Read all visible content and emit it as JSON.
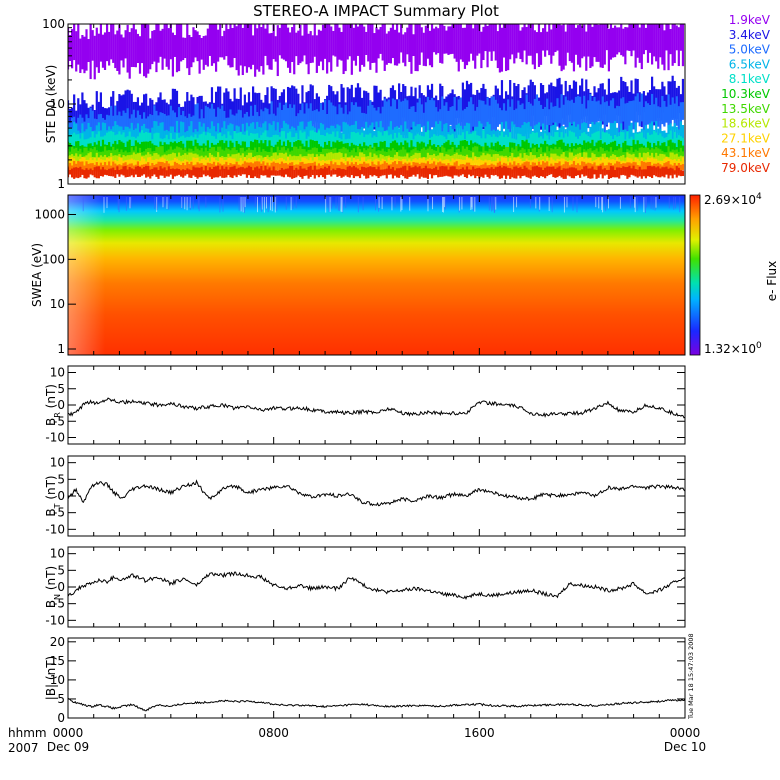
{
  "title": "STEREO-A IMPACT Summary Plot",
  "x_axis": {
    "row1_label": "hhmm",
    "row2_label": "2007",
    "ticks": [
      {
        "hhmm": "0000",
        "date": "Dec 09",
        "hours": 0
      },
      {
        "hhmm": "0800",
        "date": "",
        "hours": 8
      },
      {
        "hhmm": "1600",
        "date": "",
        "hours": 16
      },
      {
        "hhmm": "0000",
        "date": "Dec 10",
        "hours": 24
      }
    ],
    "range_hours": [
      0,
      24
    ]
  },
  "timestamp": "Tue Mar 18 15:47:03 2008",
  "colorbar": {
    "label": "e- Flux",
    "max_mantissa": "2.69×10",
    "max_exp": "4",
    "min_mantissa": "1.32×10",
    "min_exp": "0"
  },
  "colors": {
    "ste_1_9": "#9400f0",
    "ste_3_4": "#1a14e6",
    "ste_5_0": "#1e6cff",
    "ste_6_5": "#00b4e8",
    "ste_8_1": "#00e0c8",
    "ste_10_3": "#00c800",
    "ste_13_5": "#40d800",
    "ste_18_6": "#b4e800",
    "ste_27_1": "#ffd200",
    "ste_43_1": "#ff7800",
    "ste_79_0": "#e82800"
  },
  "chart_data": [
    {
      "type": "line",
      "panel": "ste",
      "ylabel": "STE D0 (keV)",
      "yscale": "log",
      "ylim": [
        1,
        100
      ],
      "yticks": [
        "1",
        "10",
        "100"
      ],
      "series": [
        {
          "name": "1.9keV",
          "level": 48,
          "spread": 0.28
        },
        {
          "name": "3.4keV",
          "level": 6.5,
          "spread": 0.25
        },
        {
          "name": "5.0keV",
          "level": 4.8,
          "spread": 0.2
        },
        {
          "name": "6.5keV",
          "level": 3.8,
          "spread": 0.15
        },
        {
          "name": "8.1keV",
          "level": 3.2,
          "spread": 0.12
        },
        {
          "name": "10.3keV",
          "level": 2.6,
          "spread": 0.1
        },
        {
          "name": "13.5keV",
          "level": 2.3,
          "spread": 0.08
        },
        {
          "name": "18.6keV",
          "level": 2.0,
          "spread": 0.07
        },
        {
          "name": "27.1keV",
          "level": 1.8,
          "spread": 0.06
        },
        {
          "name": "43.1keV",
          "level": 1.6,
          "spread": 0.06
        },
        {
          "name": "79.0keV",
          "level": 1.4,
          "spread": 0.06
        }
      ]
    },
    {
      "type": "heatmap",
      "panel": "swea",
      "ylabel": "SWEA (eV)",
      "yscale": "log",
      "ylim": [
        1,
        2000
      ],
      "yticks": [
        "1",
        "10",
        "100",
        "1000"
      ],
      "zlim": [
        1.32,
        26900
      ],
      "zlabel": "e- Flux"
    },
    {
      "type": "line",
      "panel": "br",
      "ylabel": "B_R (nT)",
      "ylim": [
        -12,
        12
      ],
      "yticks": [
        "-10",
        "-5",
        "0",
        "5",
        "10"
      ],
      "x_hours": [
        0,
        0.3,
        0.6,
        0.9,
        1.2,
        1.5,
        1.8,
        2.1,
        2.5,
        3,
        3.5,
        4,
        4.5,
        5,
        5.5,
        6,
        6.5,
        7,
        7.5,
        8,
        8.5,
        9,
        9.5,
        10,
        10.5,
        11,
        11.5,
        12,
        12.5,
        13,
        13.5,
        14,
        14.5,
        15,
        15.5,
        16,
        16.5,
        17,
        17.5,
        18,
        18.5,
        19,
        19.5,
        20,
        20.5,
        21,
        21.5,
        22,
        22.5,
        23,
        23.5,
        24
      ],
      "y": [
        -3,
        -2.5,
        0,
        1,
        0.5,
        2,
        1.5,
        0.8,
        1,
        0.5,
        0,
        0.5,
        -0.5,
        -1,
        -0.5,
        0,
        -1,
        -0.5,
        -1.5,
        -1,
        -1.2,
        -0.8,
        -1.5,
        -2,
        -2.2,
        -2.5,
        -2,
        -2.3,
        -1,
        -2.5,
        -2.8,
        -2.2,
        -2.5,
        -2.6,
        -2.4,
        1,
        0.5,
        0,
        -0.5,
        -2.5,
        -3,
        -2.8,
        -2.6,
        -2.4,
        -1,
        0.5,
        -2,
        -2.2,
        0,
        -1,
        -2.5,
        -3.5
      ]
    },
    {
      "type": "line",
      "panel": "bt",
      "ylabel": "B_T (nT)",
      "ylim": [
        -12,
        12
      ],
      "yticks": [
        "-10",
        "-5",
        "0",
        "5",
        "10"
      ],
      "x_hours": [
        0,
        0.3,
        0.6,
        0.9,
        1.2,
        1.5,
        1.8,
        2.1,
        2.5,
        3,
        3.5,
        4,
        4.5,
        5,
        5.5,
        6,
        6.5,
        7,
        7.5,
        8,
        8.5,
        9,
        9.5,
        10,
        10.5,
        11,
        11.5,
        12,
        12.5,
        13,
        13.5,
        14,
        14.5,
        15,
        15.5,
        16,
        16.5,
        17,
        17.5,
        18,
        18.5,
        19,
        19.5,
        20,
        20.5,
        21,
        21.5,
        22,
        22.5,
        23,
        23.5,
        24
      ],
      "y": [
        -1,
        2,
        -2,
        3,
        4,
        3.5,
        1,
        -1,
        2,
        3,
        2,
        1,
        3,
        4,
        -1,
        2,
        3,
        1,
        2,
        2.5,
        3,
        1,
        -0.5,
        0.5,
        0,
        0.5,
        -2,
        -2.5,
        -2,
        -1,
        -1.5,
        0,
        -0.5,
        0.5,
        0,
        2,
        1,
        0,
        -0.5,
        -1,
        0.5,
        0,
        0.5,
        1,
        0,
        2.5,
        2,
        3,
        2.5,
        3,
        2.5,
        2
      ]
    },
    {
      "type": "line",
      "panel": "bn",
      "ylabel": "B_N (nT)",
      "ylim": [
        -12,
        12
      ],
      "yticks": [
        "-10",
        "-5",
        "0",
        "5",
        "10"
      ],
      "x_hours": [
        0,
        0.3,
        0.6,
        0.9,
        1.2,
        1.5,
        1.8,
        2.1,
        2.5,
        3,
        3.5,
        4,
        4.5,
        5,
        5.5,
        6,
        6.5,
        7,
        7.5,
        8,
        8.5,
        9,
        9.5,
        10,
        10.5,
        11,
        11.5,
        12,
        12.5,
        13,
        13.5,
        14,
        14.5,
        15,
        15.5,
        16,
        16.5,
        17,
        17.5,
        18,
        18.5,
        19,
        19.5,
        20,
        20.5,
        21,
        21.5,
        22,
        22.5,
        23,
        23.5,
        24
      ],
      "y": [
        -3,
        -1,
        0.5,
        1,
        2,
        1.5,
        3,
        2,
        3.5,
        2,
        3,
        1,
        2.5,
        0.5,
        4,
        3.5,
        4,
        3.5,
        3,
        0.5,
        -0.5,
        0.5,
        -0.5,
        0,
        -0.5,
        3,
        0.5,
        -1,
        -1.5,
        -1,
        -0.5,
        -1,
        -2,
        -2.5,
        -3,
        -2,
        -2.5,
        -2,
        -1.5,
        -1,
        -2,
        -3,
        1,
        0.5,
        0,
        -1,
        -0.5,
        1,
        -2,
        -1,
        1,
        3
      ]
    },
    {
      "type": "line",
      "panel": "bmag",
      "ylabel": "|B| (nT)",
      "ylim": [
        0,
        21
      ],
      "yticks": [
        "0",
        "5",
        "10",
        "15",
        "20"
      ],
      "x_hours": [
        0,
        0.3,
        0.6,
        0.9,
        1.2,
        1.5,
        1.8,
        2.1,
        2.5,
        3,
        3.5,
        4,
        4.5,
        5,
        5.5,
        6,
        6.5,
        7,
        7.5,
        8,
        8.5,
        9,
        9.5,
        10,
        10.5,
        11,
        11.5,
        12,
        12.5,
        13,
        13.5,
        14,
        14.5,
        15,
        15.5,
        16,
        16.5,
        17,
        17.5,
        18,
        18.5,
        19,
        19.5,
        20,
        20.5,
        21,
        21.5,
        22,
        22.5,
        23,
        23.5,
        24
      ],
      "y": [
        5,
        4,
        3.5,
        3,
        3.5,
        3,
        2.5,
        3,
        3.5,
        2,
        3.5,
        3,
        3.8,
        4,
        4.2,
        4.5,
        4.3,
        4.4,
        4.2,
        3.6,
        3.3,
        3.4,
        3.2,
        3,
        3.2,
        3.5,
        3.6,
        3.2,
        3,
        3.1,
        3.3,
        3.2,
        3.1,
        3.4,
        3.5,
        3.6,
        3.3,
        3.2,
        3.1,
        3.3,
        3.4,
        3.5,
        3.6,
        3.4,
        3.3,
        3.5,
        3.8,
        4,
        4.2,
        4.4,
        4.6,
        4.8
      ]
    }
  ]
}
